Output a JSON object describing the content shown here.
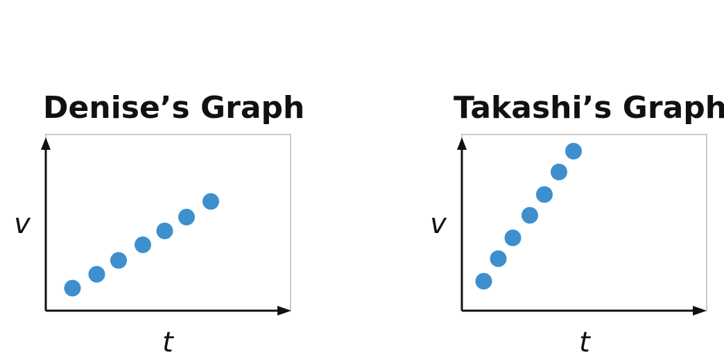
{
  "chart_data": [
    {
      "type": "scatter",
      "title": "Denise’s Graph",
      "xlabel": "t",
      "ylabel": "v",
      "xlim": [
        0,
        10
      ],
      "ylim": [
        0,
        10
      ],
      "grid": false,
      "points": [
        {
          "x": 1.1,
          "y": 1.3
        },
        {
          "x": 2.1,
          "y": 2.1
        },
        {
          "x": 3.0,
          "y": 2.9
        },
        {
          "x": 4.0,
          "y": 3.8
        },
        {
          "x": 4.9,
          "y": 4.6
        },
        {
          "x": 5.8,
          "y": 5.4
        },
        {
          "x": 6.8,
          "y": 6.3
        }
      ],
      "marker_color": "#3d8fce"
    },
    {
      "type": "scatter",
      "title": "Takashi’s Graph",
      "xlabel": "t",
      "ylabel": "v",
      "xlim": [
        0,
        10
      ],
      "ylim": [
        0,
        10
      ],
      "grid": false,
      "points": [
        {
          "x": 0.9,
          "y": 1.7
        },
        {
          "x": 1.5,
          "y": 3.0
        },
        {
          "x": 2.1,
          "y": 4.2
        },
        {
          "x": 2.8,
          "y": 5.5
        },
        {
          "x": 3.4,
          "y": 6.7
        },
        {
          "x": 4.0,
          "y": 8.0
        },
        {
          "x": 4.6,
          "y": 9.2
        }
      ],
      "marker_color": "#3d8fce"
    }
  ]
}
